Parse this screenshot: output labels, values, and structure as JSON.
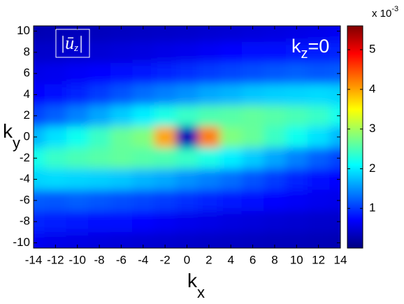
{
  "chart_data": {
    "type": "heatmap",
    "title": {
      "main": "|ū",
      "sub": "z",
      "end": "|"
    },
    "annotation": {
      "main": "k",
      "sub": "z",
      "rest": "=0"
    },
    "xlabel": {
      "main": "k",
      "sub": "x"
    },
    "ylabel": {
      "main": "k",
      "sub": "y"
    },
    "x": [
      -14,
      -12,
      -10,
      -8,
      -6,
      -4,
      -2,
      0,
      2,
      4,
      6,
      8,
      10,
      12,
      14
    ],
    "y": [
      10,
      8,
      6,
      4,
      2,
      0,
      -2,
      -4,
      -6,
      -8,
      -10
    ],
    "z": [
      [
        0.29,
        0.31,
        0.33,
        0.34,
        0.36,
        0.38,
        0.4,
        0.42,
        0.45,
        0.47,
        0.5,
        0.53,
        0.56,
        0.59,
        0.64
      ],
      [
        0.41,
        0.42,
        0.45,
        0.47,
        0.5,
        0.53,
        0.57,
        0.6,
        0.65,
        0.7,
        0.74,
        0.78,
        0.8,
        0.84,
        0.88
      ],
      [
        0.58,
        0.61,
        0.66,
        0.7,
        0.74,
        0.8,
        0.88,
        0.95,
        1.02,
        1.08,
        1.13,
        1.18,
        1.22,
        1.18,
        1.2
      ],
      [
        0.7,
        0.78,
        0.9,
        1.02,
        1.15,
        1.3,
        1.4,
        1.5,
        1.63,
        1.7,
        1.79,
        1.84,
        1.87,
        1.9,
        1.87
      ],
      [
        1.07,
        1.22,
        1.41,
        1.61,
        1.82,
        2.02,
        2.24,
        2.4,
        2.53,
        2.58,
        2.64,
        2.57,
        2.5,
        2.4,
        2.2
      ],
      [
        1.71,
        1.94,
        2.18,
        2.42,
        2.66,
        2.8,
        4.0,
        0.3,
        4.2,
        2.8,
        2.66,
        2.42,
        2.18,
        1.94,
        1.71
      ],
      [
        2.21,
        2.4,
        2.5,
        2.57,
        2.64,
        2.58,
        2.53,
        2.4,
        2.24,
        2.02,
        1.82,
        1.61,
        1.41,
        1.22,
        1.07
      ],
      [
        1.87,
        1.9,
        1.87,
        1.84,
        1.79,
        1.7,
        1.63,
        1.5,
        1.4,
        1.3,
        1.15,
        1.02,
        0.9,
        0.78,
        0.7
      ],
      [
        1.2,
        1.18,
        1.22,
        1.18,
        1.13,
        1.08,
        1.02,
        0.95,
        0.88,
        0.8,
        0.74,
        0.7,
        0.66,
        0.61,
        0.58
      ],
      [
        0.88,
        0.84,
        0.8,
        0.78,
        0.74,
        0.7,
        0.65,
        0.6,
        0.57,
        0.53,
        0.5,
        0.47,
        0.45,
        0.42,
        0.41
      ],
      [
        0.64,
        0.59,
        0.56,
        0.53,
        0.5,
        0.47,
        0.45,
        0.42,
        0.4,
        0.38,
        0.36,
        0.34,
        0.33,
        0.31,
        0.29
      ]
    ],
    "colormap": "jet",
    "clim": [
      0,
      5.6
    ],
    "cticks": [
      1,
      2,
      3,
      4,
      5
    ],
    "cbar_multiplier": {
      "main": "x 10",
      "sup": "-3"
    },
    "xlim": [
      -14,
      14
    ],
    "ylim": [
      -10.5,
      10.5
    ],
    "xticks": [
      -14,
      -12,
      -10,
      -8,
      -6,
      -4,
      -2,
      0,
      2,
      4,
      6,
      8,
      10,
      12,
      14
    ],
    "yticks": [
      -10,
      -8,
      -6,
      -4,
      -2,
      0,
      2,
      4,
      6,
      8,
      10
    ]
  }
}
